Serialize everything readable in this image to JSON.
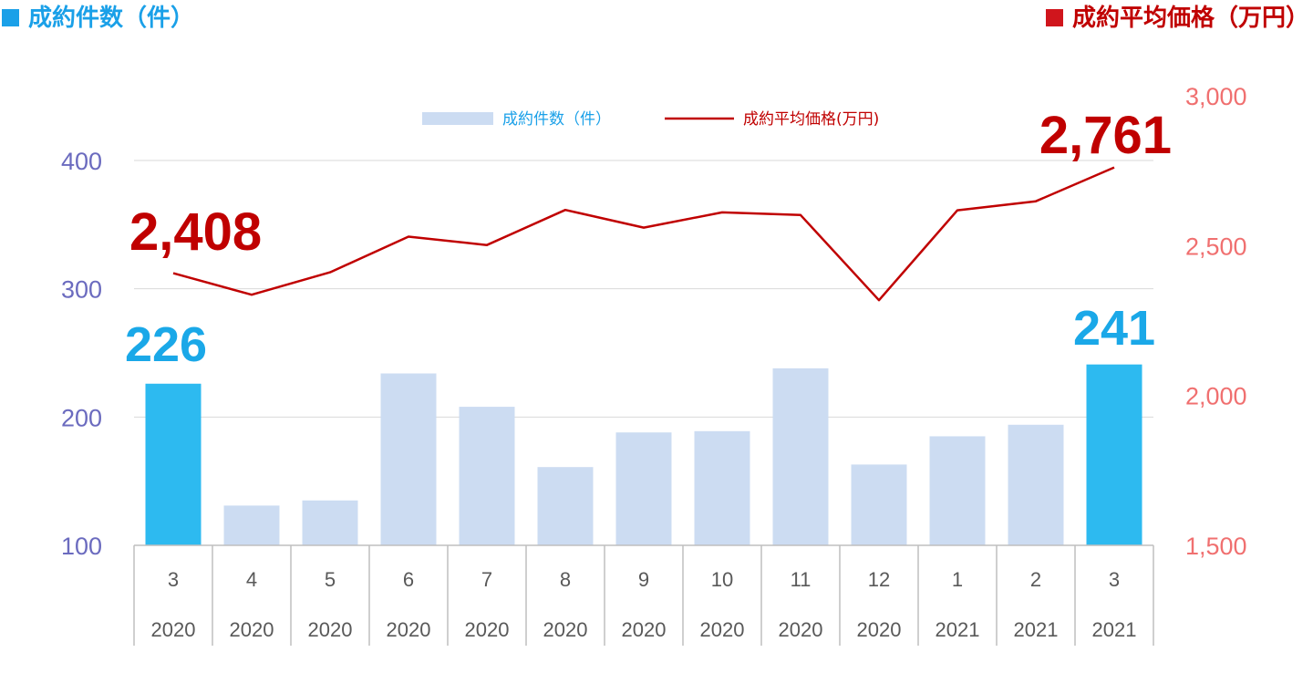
{
  "header": {
    "left_title": "成約件数（件）",
    "right_title": "成約平均価格（万円）"
  },
  "legend": {
    "bars_label": "成約件数（件）",
    "line_label": "成約平均価格(万円)"
  },
  "colors": {
    "bar_highlight": "#2dbaf0",
    "bar_normal": "#ccdcf2",
    "line": "#c00000",
    "left_axis": "#6b6bbf",
    "right_axis": "#f07070",
    "callout_count": "#1aa8e8",
    "callout_price": "#c00000"
  },
  "chart_data": {
    "type": "bar",
    "categories": [
      {
        "month": "3",
        "year": "2020"
      },
      {
        "month": "4",
        "year": "2020"
      },
      {
        "month": "5",
        "year": "2020"
      },
      {
        "month": "6",
        "year": "2020"
      },
      {
        "month": "7",
        "year": "2020"
      },
      {
        "month": "8",
        "year": "2020"
      },
      {
        "month": "9",
        "year": "2020"
      },
      {
        "month": "10",
        "year": "2020"
      },
      {
        "month": "11",
        "year": "2020"
      },
      {
        "month": "12",
        "year": "2020"
      },
      {
        "month": "1",
        "year": "2021"
      },
      {
        "month": "2",
        "year": "2021"
      },
      {
        "month": "3",
        "year": "2021"
      }
    ],
    "series": [
      {
        "name": "成約件数（件）",
        "type": "bar",
        "axis": "left",
        "values": [
          226,
          131,
          135,
          234,
          208,
          161,
          188,
          189,
          238,
          163,
          185,
          194,
          241
        ],
        "highlight_indices": [
          0,
          12
        ]
      },
      {
        "name": "成約平均価格(万円)",
        "type": "line",
        "axis": "right",
        "values": [
          2408,
          2336,
          2411,
          2530,
          2502,
          2619,
          2560,
          2611,
          2602,
          2318,
          2618,
          2648,
          2761
        ]
      }
    ],
    "left_axis": {
      "ylim": [
        100,
        400
      ],
      "ticks": [
        "100",
        "200",
        "300",
        "400"
      ]
    },
    "right_axis": {
      "ylim": [
        1500,
        3000
      ],
      "ticks": [
        "1,500",
        "2,000",
        "2,500",
        "3,000"
      ]
    },
    "callouts": {
      "count_first": "226",
      "count_last": "241",
      "price_first": "2,408",
      "price_last": "2,761"
    },
    "grid": true,
    "legend_position": "top-center"
  }
}
